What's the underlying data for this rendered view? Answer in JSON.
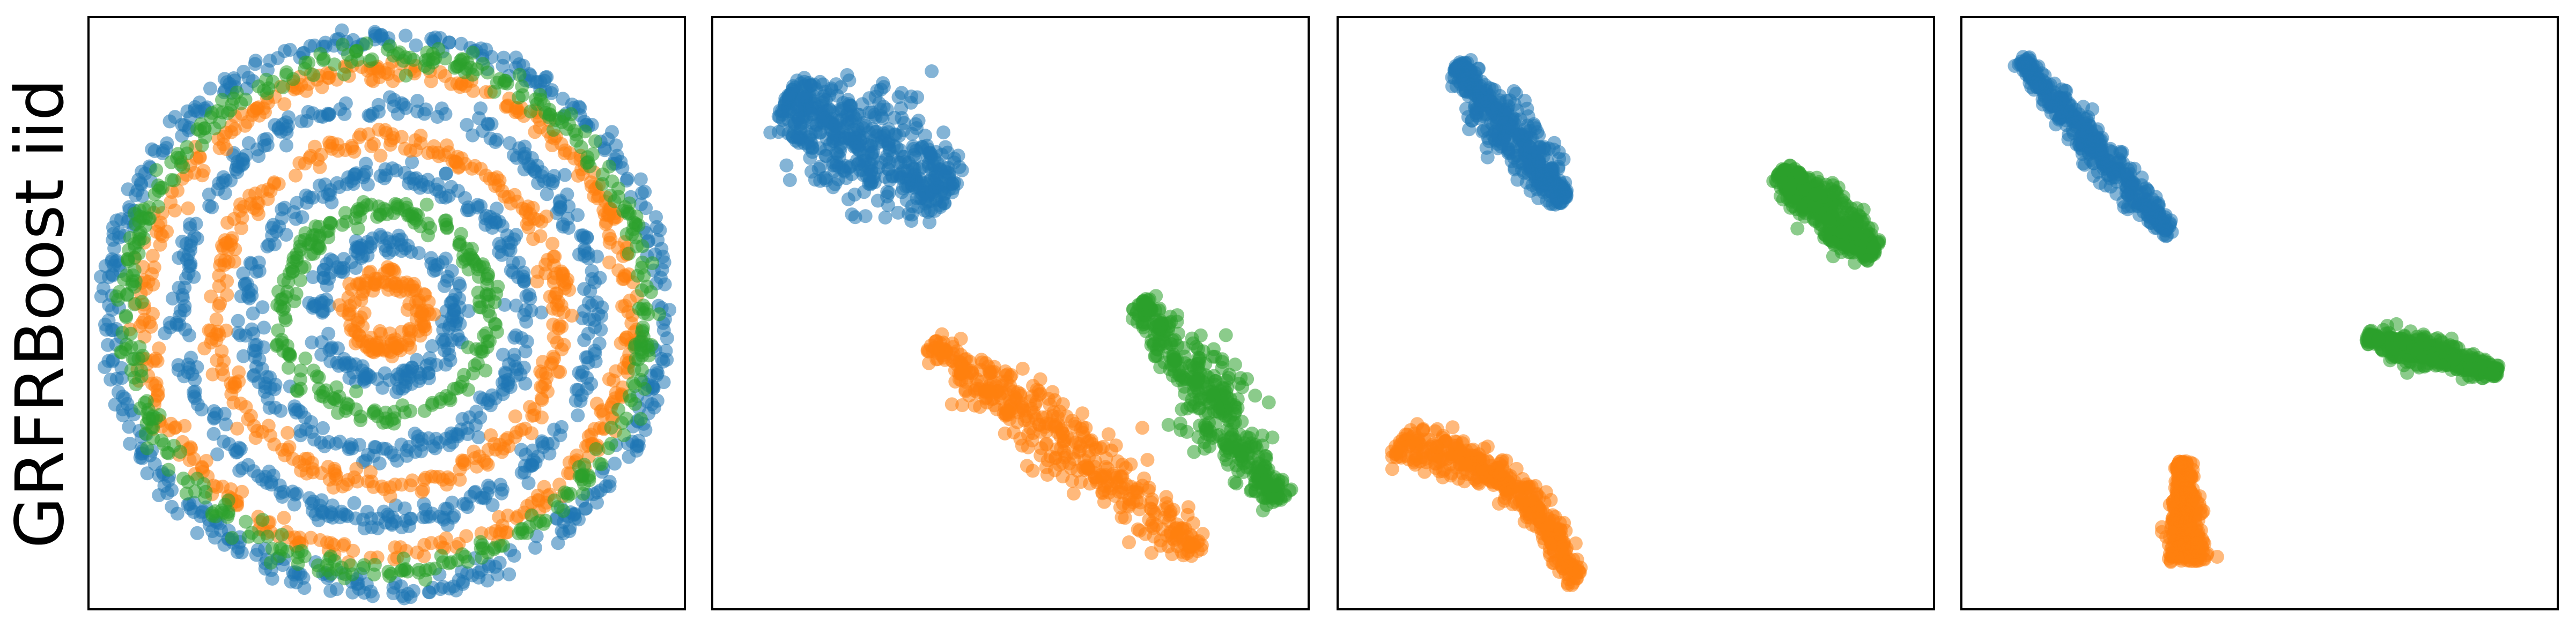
{
  "row_label": "GRFRBoost iid",
  "colors": {
    "blue": "#1f77b4",
    "orange": "#ff7f0e",
    "green": "#2ca02c"
  },
  "chart_data": [
    {
      "type": "scatter",
      "panel": 1,
      "grid": false,
      "axes_ticks": false,
      "series": [
        {
          "color": "blue",
          "shape": "rings",
          "radii": [
            2,
            4,
            6,
            8
          ],
          "center": [
            0,
            0
          ]
        },
        {
          "color": "orange",
          "shape": "rings",
          "radii": [
            1,
            5,
            7
          ],
          "center": [
            0,
            0
          ]
        },
        {
          "color": "green",
          "shape": "rings",
          "radii": [
            3,
            7.5
          ],
          "center": [
            0,
            0
          ]
        }
      ],
      "xlim": [
        -8.6,
        8.6
      ],
      "ylim": [
        -8.6,
        8.6
      ]
    },
    {
      "type": "scatter",
      "panel": 2,
      "grid": false,
      "axes_ticks": false,
      "xlim": [
        0,
        100
      ],
      "ylim": [
        0,
        100
      ],
      "series": [
        {
          "color": "blue",
          "shape": "blob",
          "from": [
            12,
            86
          ],
          "to": [
            40,
            70
          ],
          "width": 8
        },
        {
          "color": "orange",
          "shape": "band",
          "from": [
            37,
            45
          ],
          "to": [
            82,
            10
          ],
          "width": 4.5
        },
        {
          "color": "green",
          "shape": "band",
          "from": [
            72,
            52
          ],
          "to": [
            95,
            18
          ],
          "width": 4.5
        }
      ]
    },
    {
      "type": "scatter",
      "panel": 3,
      "grid": false,
      "axes_ticks": false,
      "xlim": [
        0,
        100
      ],
      "ylim": [
        0,
        100
      ],
      "series": [
        {
          "color": "blue",
          "shape": "band",
          "from": [
            20,
            92
          ],
          "to": [
            38,
            69
          ],
          "width": 3.2
        },
        {
          "color": "orange",
          "shape": "curve",
          "from": [
            10,
            28
          ],
          "to": [
            40,
            5
          ],
          "width": 3.6
        },
        {
          "color": "green",
          "shape": "band",
          "from": [
            74,
            74
          ],
          "to": [
            90,
            60
          ],
          "width": 3.2
        }
      ]
    },
    {
      "type": "scatter",
      "panel": 4,
      "grid": false,
      "axes_ticks": false,
      "xlim": [
        0,
        100
      ],
      "ylim": [
        0,
        100
      ],
      "series": [
        {
          "color": "blue",
          "shape": "band",
          "from": [
            10,
            93
          ],
          "to": [
            35,
            63
          ],
          "width": 2.2
        },
        {
          "color": "orange",
          "shape": "stem",
          "from": [
            37,
            25
          ],
          "to": [
            38,
            8
          ],
          "width": 2.5
        },
        {
          "color": "green",
          "shape": "band",
          "from": [
            68,
            46
          ],
          "to": [
            90,
            40
          ],
          "width": 2.0
        }
      ]
    }
  ]
}
